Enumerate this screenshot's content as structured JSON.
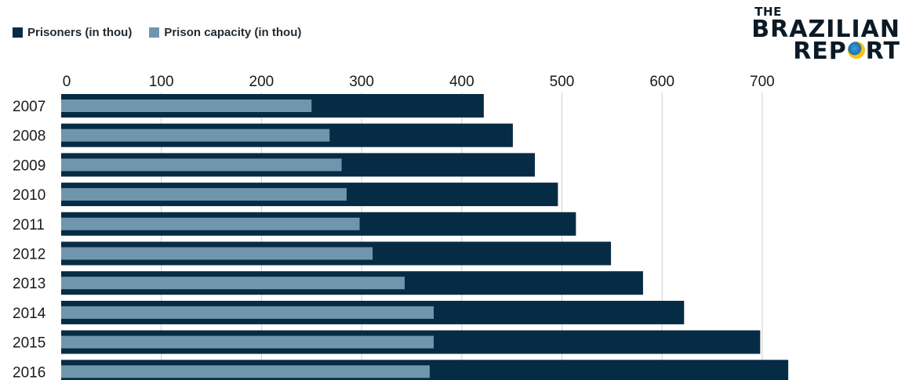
{
  "legend": {
    "items": [
      {
        "label": "Prisoners (in thou)",
        "color": "#062c45"
      },
      {
        "label": "Prison capacity (in thou)",
        "color": "#7096ae"
      }
    ]
  },
  "logo": {
    "line1": "THE",
    "line2": "BRAZILIAN",
    "line3_a": "REP",
    "line3_b": "RT"
  },
  "chart_data": {
    "type": "bar",
    "orientation": "horizontal",
    "title": "",
    "xlabel": "",
    "ylabel": "",
    "xlim": [
      0,
      750
    ],
    "xticks": [
      0,
      100,
      200,
      300,
      400,
      500,
      600,
      700
    ],
    "grid": true,
    "legend_position": "top-left",
    "categories": [
      "2007",
      "2008",
      "2009",
      "2010",
      "2011",
      "2012",
      "2013",
      "2014",
      "2015",
      "2016"
    ],
    "series": [
      {
        "name": "Prisoners (in thou)",
        "color": "#062c45",
        "values": [
          422,
          451,
          473,
          496,
          514,
          549,
          581,
          622,
          698,
          726
        ]
      },
      {
        "name": "Prison capacity (in thou)",
        "color": "#7096ae",
        "values": [
          250,
          268,
          280,
          285,
          298,
          311,
          343,
          372,
          372,
          368
        ]
      }
    ]
  }
}
